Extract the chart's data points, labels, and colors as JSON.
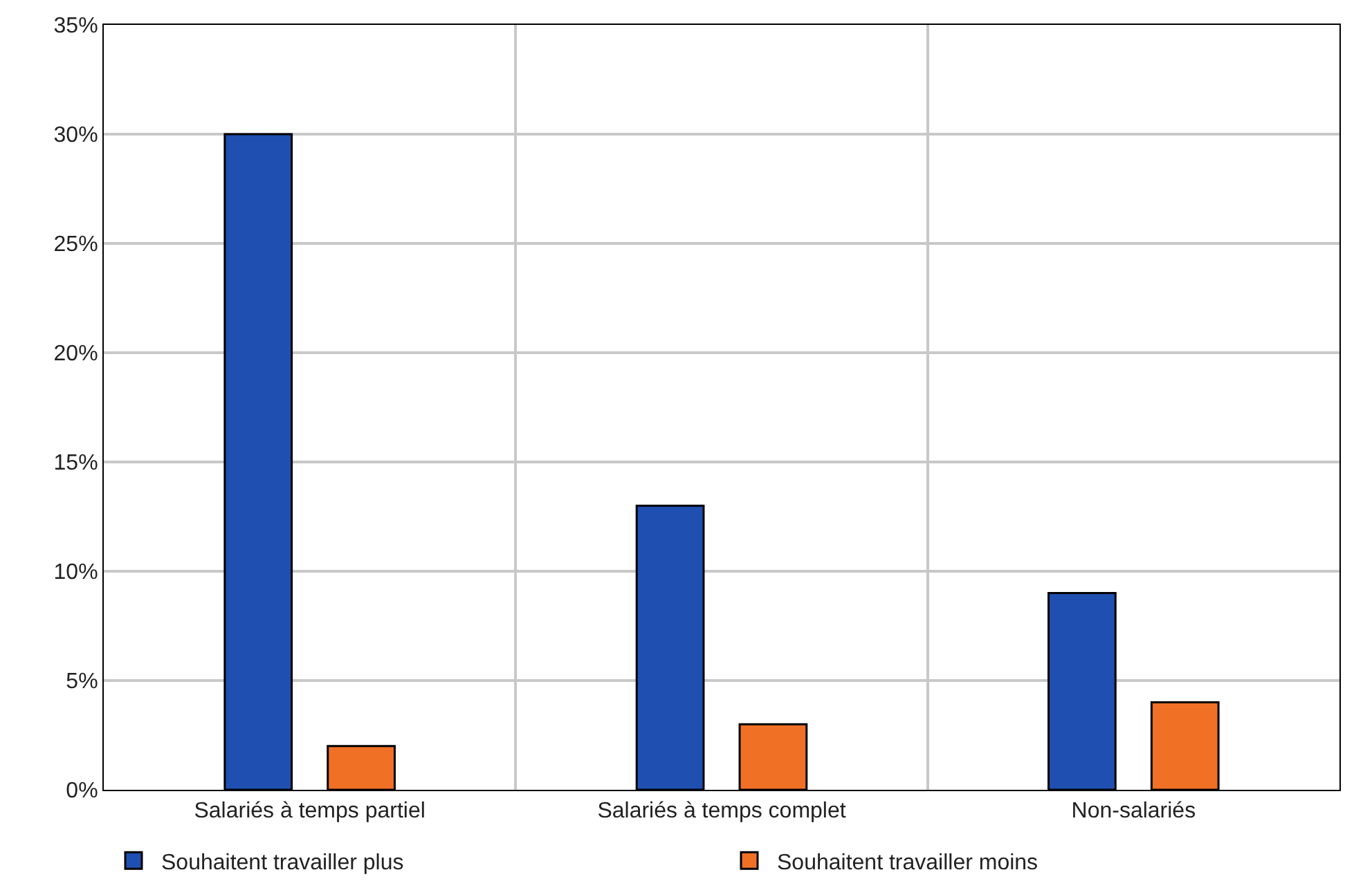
{
  "chart_data": {
    "type": "bar",
    "categories": [
      "Salariés à temps partiel",
      "Salariés à temps complet",
      "Non-salariés"
    ],
    "series": [
      {
        "name": "Souhaitent travailler plus",
        "color": "#1f4fb0",
        "values": [
          30,
          13,
          9
        ]
      },
      {
        "name": "Souhaitent travailler moins",
        "color": "#f07026",
        "values": [
          2,
          3,
          4
        ]
      }
    ],
    "ylim": [
      0,
      35
    ],
    "yticks": [
      {
        "value": 0,
        "label": "0%"
      },
      {
        "value": 5,
        "label": "5%"
      },
      {
        "value": 10,
        "label": "10%"
      },
      {
        "value": 15,
        "label": "15%"
      },
      {
        "value": 20,
        "label": "20%"
      },
      {
        "value": 25,
        "label": "25%"
      },
      {
        "value": 30,
        "label": "30%"
      },
      {
        "value": 35,
        "label": "35%"
      }
    ],
    "grid": true,
    "legend": "bottom"
  }
}
